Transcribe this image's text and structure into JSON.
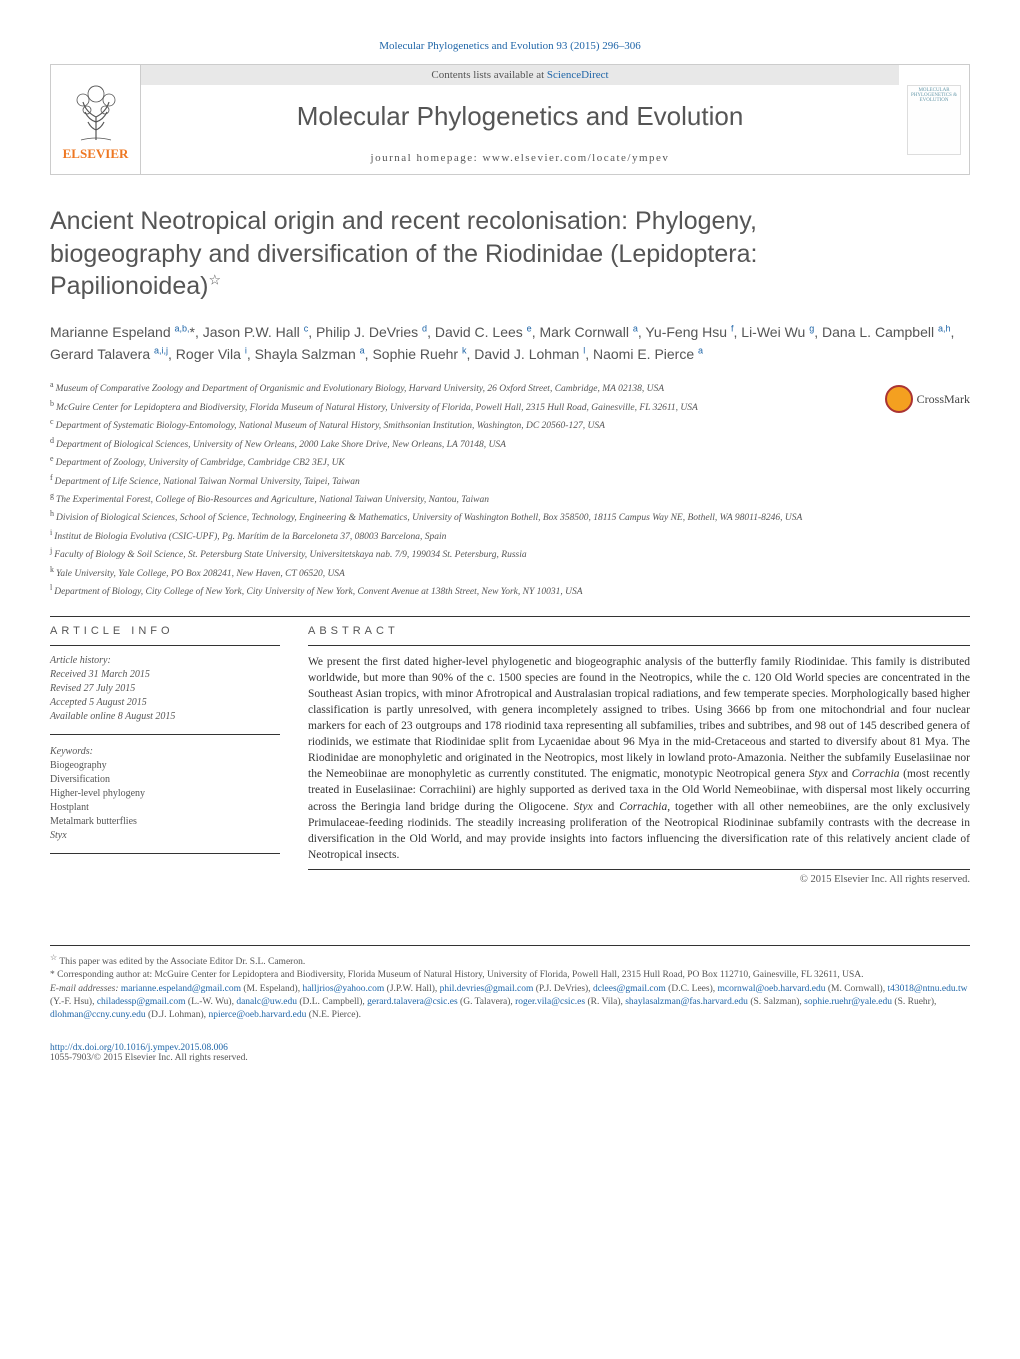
{
  "header": {
    "citation": "Molecular Phylogenetics and Evolution 93 (2015) 296–306",
    "contents_label": "Contents lists available at",
    "sciencedirect": "ScienceDirect",
    "journal_name": "Molecular Phylogenetics and Evolution",
    "homepage_label": "journal homepage:",
    "homepage_url": "www.elsevier.com/locate/ympev",
    "publisher": "ELSEVIER",
    "cover_text": "MOLECULAR PHYLOGENETICS & EVOLUTION",
    "crossmark": "CrossMark"
  },
  "paper": {
    "title": "Ancient Neotropical origin and recent recolonisation: Phylogeny, biogeography and diversification of the Riodinidae (Lepidoptera: Papilionoidea)",
    "title_marker": "☆",
    "authors_html": "Marianne Espeland <sup>a,b,</sup>*, Jason P.W. Hall <sup>c</sup>, Philip J. DeVries <sup>d</sup>, David C. Lees <sup>e</sup>, Mark Cornwall <sup>a</sup>, Yu-Feng Hsu <sup>f</sup>, Li-Wei Wu <sup>g</sup>, Dana L. Campbell <sup>a,h</sup>, Gerard Talavera <sup>a,i,j</sup>, Roger Vila <sup>i</sup>, Shayla Salzman <sup>a</sup>, Sophie Ruehr <sup>k</sup>, David J. Lohman <sup>l</sup>, Naomi E. Pierce <sup>a</sup>"
  },
  "affiliations": [
    {
      "l": "a",
      "t": "Museum of Comparative Zoology and Department of Organismic and Evolutionary Biology, Harvard University, 26 Oxford Street, Cambridge, MA 02138, USA"
    },
    {
      "l": "b",
      "t": "McGuire Center for Lepidoptera and Biodiversity, Florida Museum of Natural History, University of Florida, Powell Hall, 2315 Hull Road, Gainesville, FL 32611, USA"
    },
    {
      "l": "c",
      "t": "Department of Systematic Biology-Entomology, National Museum of Natural History, Smithsonian Institution, Washington, DC 20560-127, USA"
    },
    {
      "l": "d",
      "t": "Department of Biological Sciences, University of New Orleans, 2000 Lake Shore Drive, New Orleans, LA 70148, USA"
    },
    {
      "l": "e",
      "t": "Department of Zoology, University of Cambridge, Cambridge CB2 3EJ, UK"
    },
    {
      "l": "f",
      "t": "Department of Life Science, National Taiwan Normal University, Taipei, Taiwan"
    },
    {
      "l": "g",
      "t": "The Experimental Forest, College of Bio-Resources and Agriculture, National Taiwan University, Nantou, Taiwan"
    },
    {
      "l": "h",
      "t": "Division of Biological Sciences, School of Science, Technology, Engineering & Mathematics, University of Washington Bothell, Box 358500, 18115 Campus Way NE, Bothell, WA 98011-8246, USA"
    },
    {
      "l": "i",
      "t": "Institut de Biologia Evolutiva (CSIC-UPF), Pg. Marítim de la Barceloneta 37, 08003 Barcelona, Spain"
    },
    {
      "l": "j",
      "t": "Faculty of Biology & Soil Science, St. Petersburg State University, Universitetskaya nab. 7/9, 199034 St. Petersburg, Russia"
    },
    {
      "l": "k",
      "t": "Yale University, Yale College, PO Box 208241, New Haven, CT 06520, USA"
    },
    {
      "l": "l",
      "t": "Department of Biology, City College of New York, City University of New York, Convent Avenue at 138th Street, New York, NY 10031, USA"
    }
  ],
  "article_info": {
    "label": "ARTICLE INFO",
    "history_label": "Article history:",
    "received": "Received 31 March 2015",
    "revised": "Revised 27 July 2015",
    "accepted": "Accepted 5 August 2015",
    "online": "Available online 8 August 2015",
    "keywords_label": "Keywords:",
    "keywords": [
      "Biogeography",
      "Diversification",
      "Higher-level phylogeny",
      "Hostplant",
      "Metalmark butterflies",
      "Styx"
    ]
  },
  "abstract": {
    "label": "ABSTRACT",
    "text": "We present the first dated higher-level phylogenetic and biogeographic analysis of the butterfly family Riodinidae. This family is distributed worldwide, but more than 90% of the c. 1500 species are found in the Neotropics, while the c. 120 Old World species are concentrated in the Southeast Asian tropics, with minor Afrotropical and Australasian tropical radiations, and few temperate species. Morphologically based higher classification is partly unresolved, with genera incompletely assigned to tribes. Using 3666 bp from one mitochondrial and four nuclear markers for each of 23 outgroups and 178 riodinid taxa representing all subfamilies, tribes and subtribes, and 98 out of 145 described genera of riodinids, we estimate that Riodinidae split from Lycaenidae about 96 Mya in the mid-Cretaceous and started to diversify about 81 Mya. The Riodinidae are monophyletic and originated in the Neotropics, most likely in lowland proto-Amazonia. Neither the subfamily Euselasiinae nor the Nemeobiinae are monophyletic as currently constituted. The enigmatic, monotypic Neotropical genera Styx and Corrachia (most recently treated in Euselasiinae: Corrachiini) are highly supported as derived taxa in the Old World Nemeobiinae, with dispersal most likely occurring across the Beringia land bridge during the Oligocene. Styx and Corrachia, together with all other nemeobiines, are the only exclusively Primulaceae-feeding riodinids. The steadily increasing proliferation of the Neotropical Riodininae subfamily contrasts with the decrease in diversification in the Old World, and may provide insights into factors influencing the diversification rate of this relatively ancient clade of Neotropical insects.",
    "copyright": "© 2015 Elsevier Inc. All rights reserved."
  },
  "footnotes": {
    "editor_note": "This paper was edited by the Associate Editor Dr. S.L. Cameron.",
    "corr_note": "Corresponding author at: McGuire Center for Lepidoptera and Biodiversity, Florida Museum of Natural History, University of Florida, Powell Hall, 2315 Hull Road, PO Box 112710, Gainesville, FL 32611, USA.",
    "email_label": "E-mail addresses:",
    "emails": [
      {
        "e": "marianne.espeland@gmail.com",
        "n": "(M. Espeland)"
      },
      {
        "e": "halljrios@yahoo.com",
        "n": "(J.P.W. Hall)"
      },
      {
        "e": "phil.devries@gmail.com",
        "n": "(P.J. DeVries)"
      },
      {
        "e": "dclees@gmail.com",
        "n": "(D.C. Lees)"
      },
      {
        "e": "mcornwal@oeb.harvard.edu",
        "n": "(M. Cornwall)"
      },
      {
        "e": "t43018@ntnu.edu.tw",
        "n": "(Y.-F. Hsu)"
      },
      {
        "e": "chiladessp@gmail.com",
        "n": "(L.-W. Wu)"
      },
      {
        "e": "danalc@uw.edu",
        "n": "(D.L. Campbell)"
      },
      {
        "e": "gerard.talavera@csic.es",
        "n": "(G. Talavera)"
      },
      {
        "e": "roger.vila@csic.es",
        "n": "(R. Vila)"
      },
      {
        "e": "shaylasalzman@fas.harvard.edu",
        "n": "(S. Salzman)"
      },
      {
        "e": "sophie.ruehr@yale.edu",
        "n": "(S. Ruehr)"
      },
      {
        "e": "dlohman@ccny.cuny.edu",
        "n": "(D.J. Lohman)"
      },
      {
        "e": "npierce@oeb.harvard.edu",
        "n": "(N.E. Pierce)"
      }
    ]
  },
  "footer": {
    "doi": "http://dx.doi.org/10.1016/j.ympev.2015.08.006",
    "issn_line": "1055-7903/© 2015 Elsevier Inc. All rights reserved."
  },
  "colors": {
    "link": "#2066a8",
    "publisher_orange": "#ee7722",
    "text_gray": "#555555",
    "body_text": "#333333",
    "border_light": "#cccccc",
    "rule": "#333333",
    "crossmark_ring": "#aa3333",
    "crossmark_fill": "#f4a020",
    "background": "#ffffff"
  }
}
